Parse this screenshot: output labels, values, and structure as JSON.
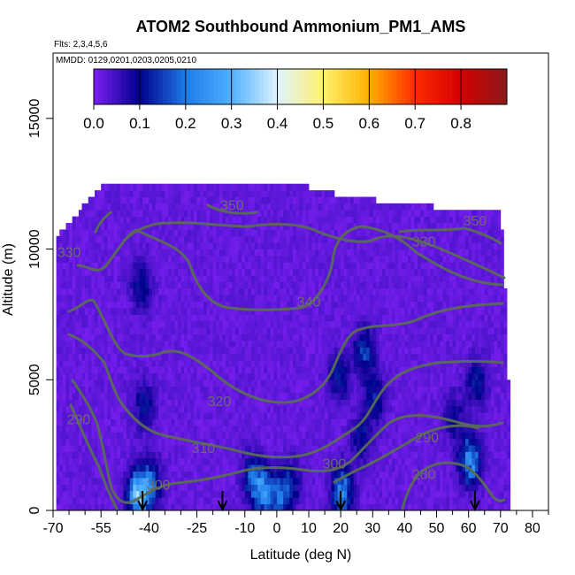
{
  "title": "ATOM2 Southbound Ammonium_PM1_AMS",
  "flights_note": "Flts: 2,3,4,5,6",
  "dates_note": "MMDD: 0129,0201,0203,0205,0210",
  "chart_data": {
    "type": "heatmap",
    "title": "ATOM2 Southbound Ammonium_PM1_AMS",
    "xlabel": "Latitude (deg N)",
    "ylabel": "Altitude (m)",
    "xlim": [
      -70,
      85
    ],
    "ylim": [
      0,
      17500
    ],
    "x_ticks": [
      -70,
      -55,
      -40,
      -25,
      -10,
      0,
      10,
      20,
      30,
      40,
      50,
      60,
      70,
      80
    ],
    "x_minor_ticks": [
      -65,
      -60,
      -50,
      -45,
      -35,
      -30,
      -20,
      -15,
      -5,
      5,
      15,
      25,
      35,
      45,
      55,
      65,
      75,
      85
    ],
    "y_ticks": [
      0,
      5000,
      10000,
      15000
    ],
    "colorbar": {
      "ticks": [
        0.0,
        0.1,
        0.2,
        0.3,
        0.4,
        0.5,
        0.6,
        0.7,
        0.8
      ],
      "range": [
        0,
        0.9
      ],
      "colors": [
        "#7b1ff2",
        "#00008b",
        "#1e7be8",
        "#4fb0ff",
        "#dff3ff",
        "#fff26b",
        "#ffb000",
        "#ff2a00",
        "#d40000",
        "#8b1a1a"
      ]
    },
    "background_value": 0.02,
    "data_extent": {
      "top_by_lat": [
        {
          "lat": -69,
          "alt": 10400
        },
        {
          "lat": -65,
          "alt": 10900
        },
        {
          "lat": -62,
          "alt": 11300
        },
        {
          "lat": -59,
          "alt": 11800
        },
        {
          "lat": -56,
          "alt": 12200
        },
        {
          "lat": -52,
          "alt": 12500
        },
        {
          "lat": 8,
          "alt": 12500
        },
        {
          "lat": 12,
          "alt": 12100
        },
        {
          "lat": 29,
          "alt": 11800
        },
        {
          "lat": 38,
          "alt": 11600
        },
        {
          "lat": 70,
          "alt": 11300
        },
        {
          "lat": 71,
          "alt": 10000
        },
        {
          "lat": 72,
          "alt": 7000
        },
        {
          "lat": 73,
          "alt": 3000
        }
      ],
      "lat_min": -69,
      "lat_max": 73
    },
    "hotspots": [
      {
        "lat": -43,
        "alt": 8500,
        "value": 0.1
      },
      {
        "lat": -42,
        "alt": 3900,
        "value": 0.09
      },
      {
        "lat": -44,
        "alt": 500,
        "value": 0.28
      },
      {
        "lat": -40,
        "alt": 900,
        "value": 0.15
      },
      {
        "lat": -8,
        "alt": 1200,
        "value": 0.12
      },
      {
        "lat": -5,
        "alt": 600,
        "value": 0.18
      },
      {
        "lat": 0,
        "alt": 400,
        "value": 0.14
      },
      {
        "lat": 4,
        "alt": 900,
        "value": 0.1
      },
      {
        "lat": 20,
        "alt": 600,
        "value": 0.2
      },
      {
        "lat": 19,
        "alt": 5000,
        "value": 0.1
      },
      {
        "lat": 27,
        "alt": 6000,
        "value": 0.12
      },
      {
        "lat": 30,
        "alt": 4200,
        "value": 0.11
      },
      {
        "lat": 26,
        "alt": 2600,
        "value": 0.09
      },
      {
        "lat": 60,
        "alt": 1800,
        "value": 0.22
      },
      {
        "lat": 62,
        "alt": 4800,
        "value": 0.1
      },
      {
        "lat": 55,
        "alt": 3500,
        "value": 0.08
      }
    ],
    "contour_labels": [
      {
        "text": "350",
        "lat": -14,
        "alt": 11500
      },
      {
        "text": "350",
        "lat": 62,
        "alt": 10900
      },
      {
        "text": "330",
        "lat": 46,
        "alt": 10100
      },
      {
        "text": "340",
        "lat": 10,
        "alt": 7800
      },
      {
        "text": "320",
        "lat": -18,
        "alt": 4000
      },
      {
        "text": "310",
        "lat": -23,
        "alt": 2200
      },
      {
        "text": "300",
        "lat": -37,
        "alt": 800
      },
      {
        "text": "300",
        "lat": 18,
        "alt": 1600
      },
      {
        "text": "290",
        "lat": 47,
        "alt": 2600
      },
      {
        "text": "280",
        "lat": 46,
        "alt": 1200
      },
      {
        "text": "290",
        "lat": -62,
        "alt": 3300
      },
      {
        "text": "330",
        "lat": -65,
        "alt": 9700
      }
    ],
    "flight_markers": [
      -42,
      -17,
      20,
      62
    ]
  }
}
